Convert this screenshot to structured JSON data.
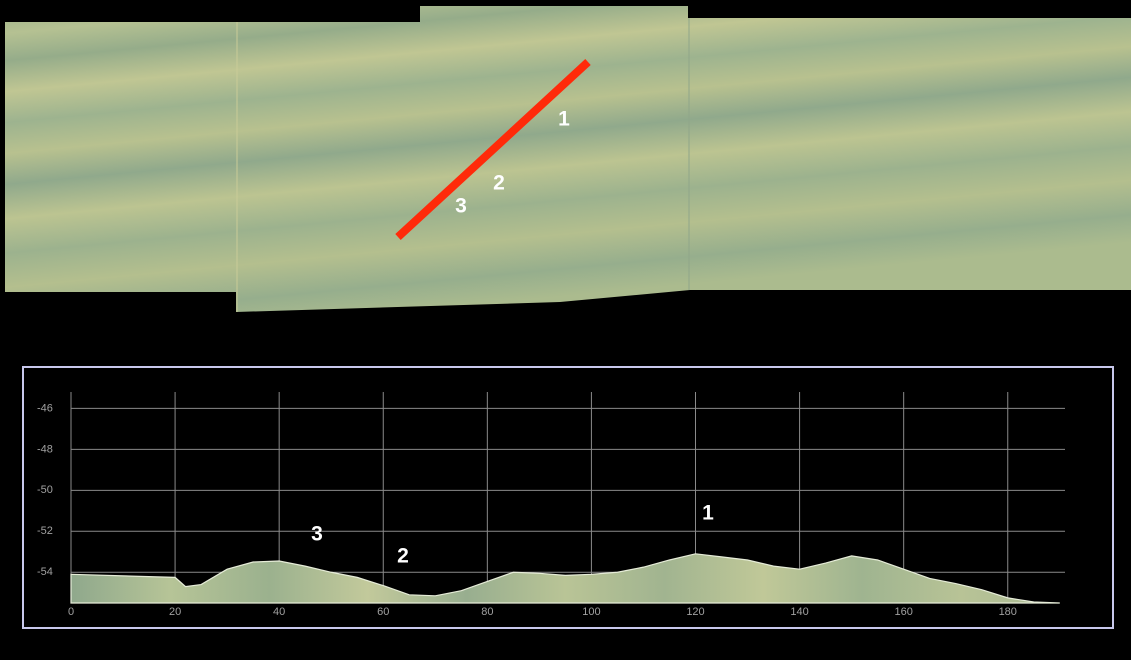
{
  "map": {
    "labels": [
      "1",
      "2",
      "3"
    ]
  },
  "chart_data": {
    "type": "area",
    "x": [
      0,
      20,
      22,
      25,
      30,
      35,
      40,
      45,
      50,
      55,
      60,
      65,
      70,
      75,
      80,
      85,
      90,
      95,
      100,
      105,
      110,
      115,
      120,
      125,
      130,
      135,
      140,
      145,
      150,
      155,
      160,
      165,
      170,
      175,
      180,
      185,
      190
    ],
    "values": [
      -54.1,
      -54.25,
      -54.7,
      -54.6,
      -53.85,
      -53.5,
      -53.45,
      -53.7,
      -54.0,
      -54.25,
      -54.65,
      -55.1,
      -55.15,
      -54.9,
      -54.45,
      -54.0,
      -54.05,
      -54.15,
      -54.1,
      -54.0,
      -53.75,
      -53.4,
      -53.1,
      -53.25,
      -53.4,
      -53.7,
      -53.85,
      -53.55,
      -53.2,
      -53.4,
      -53.85,
      -54.3,
      -54.55,
      -54.85,
      -55.25,
      -55.45,
      -55.5
    ],
    "color": "#a9bb8e",
    "xlim": [
      0,
      191
    ],
    "ylim": [
      -55.5,
      -45.2
    ],
    "xticks": [
      0,
      20,
      40,
      60,
      80,
      100,
      120,
      140,
      160,
      180
    ],
    "yticks": [
      -46,
      -48,
      -50,
      -52,
      -54
    ],
    "grid": true,
    "annotations": [
      "1",
      "2",
      "3"
    ]
  }
}
